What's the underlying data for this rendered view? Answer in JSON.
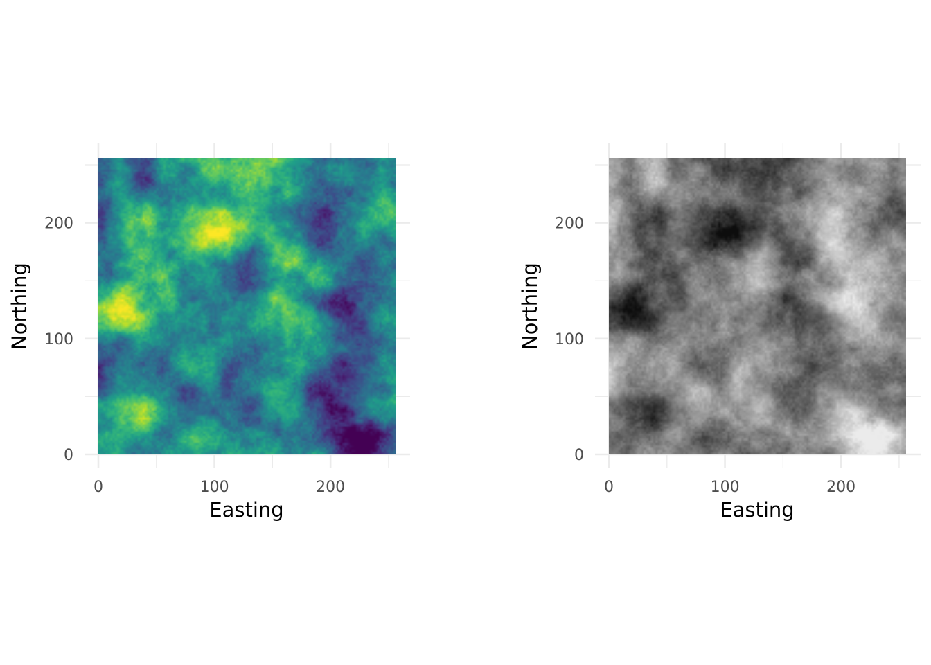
{
  "chart_data": [
    {
      "type": "heatmap",
      "colormap": "viridis",
      "xlabel": "Easting",
      "ylabel": "Northing",
      "xlim": [
        0,
        256
      ],
      "ylim": [
        0,
        256
      ],
      "x_ticks": [
        0,
        100,
        200
      ],
      "y_ticks": [
        0,
        100,
        200
      ],
      "grid": true,
      "legend": "none",
      "colors": [
        "#440154",
        "#3b528b",
        "#21918c",
        "#5ec962",
        "#fde725"
      ],
      "hotspots": [
        {
          "x": 25,
          "y": 130,
          "level": "high"
        },
        {
          "x": 90,
          "y": 188,
          "level": "high"
        },
        {
          "x": 105,
          "y": 195,
          "level": "high"
        },
        {
          "x": 190,
          "y": 75,
          "level": "high"
        },
        {
          "x": 195,
          "y": 160,
          "level": "high"
        },
        {
          "x": 215,
          "y": 125,
          "level": "low"
        },
        {
          "x": 222,
          "y": 70,
          "level": "low"
        },
        {
          "x": 220,
          "y": 10,
          "level": "low"
        },
        {
          "x": 190,
          "y": 60,
          "level": "low"
        },
        {
          "x": 245,
          "y": 100,
          "level": "low"
        }
      ]
    },
    {
      "type": "heatmap",
      "colormap": "greyscale",
      "xlabel": "Easting",
      "ylabel": "Northing",
      "xlim": [
        0,
        256
      ],
      "ylim": [
        0,
        256
      ],
      "x_ticks": [
        0,
        100,
        200
      ],
      "y_ticks": [
        0,
        100,
        200
      ],
      "grid": true,
      "legend": "none",
      "colors": [
        "#0d0d0d",
        "#808080",
        "#eeeeee"
      ],
      "hotspots": [
        {
          "x": 25,
          "y": 130,
          "level": "dark"
        },
        {
          "x": 90,
          "y": 188,
          "level": "dark"
        },
        {
          "x": 105,
          "y": 195,
          "level": "dark"
        },
        {
          "x": 190,
          "y": 75,
          "level": "dark"
        },
        {
          "x": 215,
          "y": 125,
          "level": "light"
        },
        {
          "x": 222,
          "y": 15,
          "level": "light"
        },
        {
          "x": 245,
          "y": 100,
          "level": "light"
        }
      ]
    }
  ]
}
